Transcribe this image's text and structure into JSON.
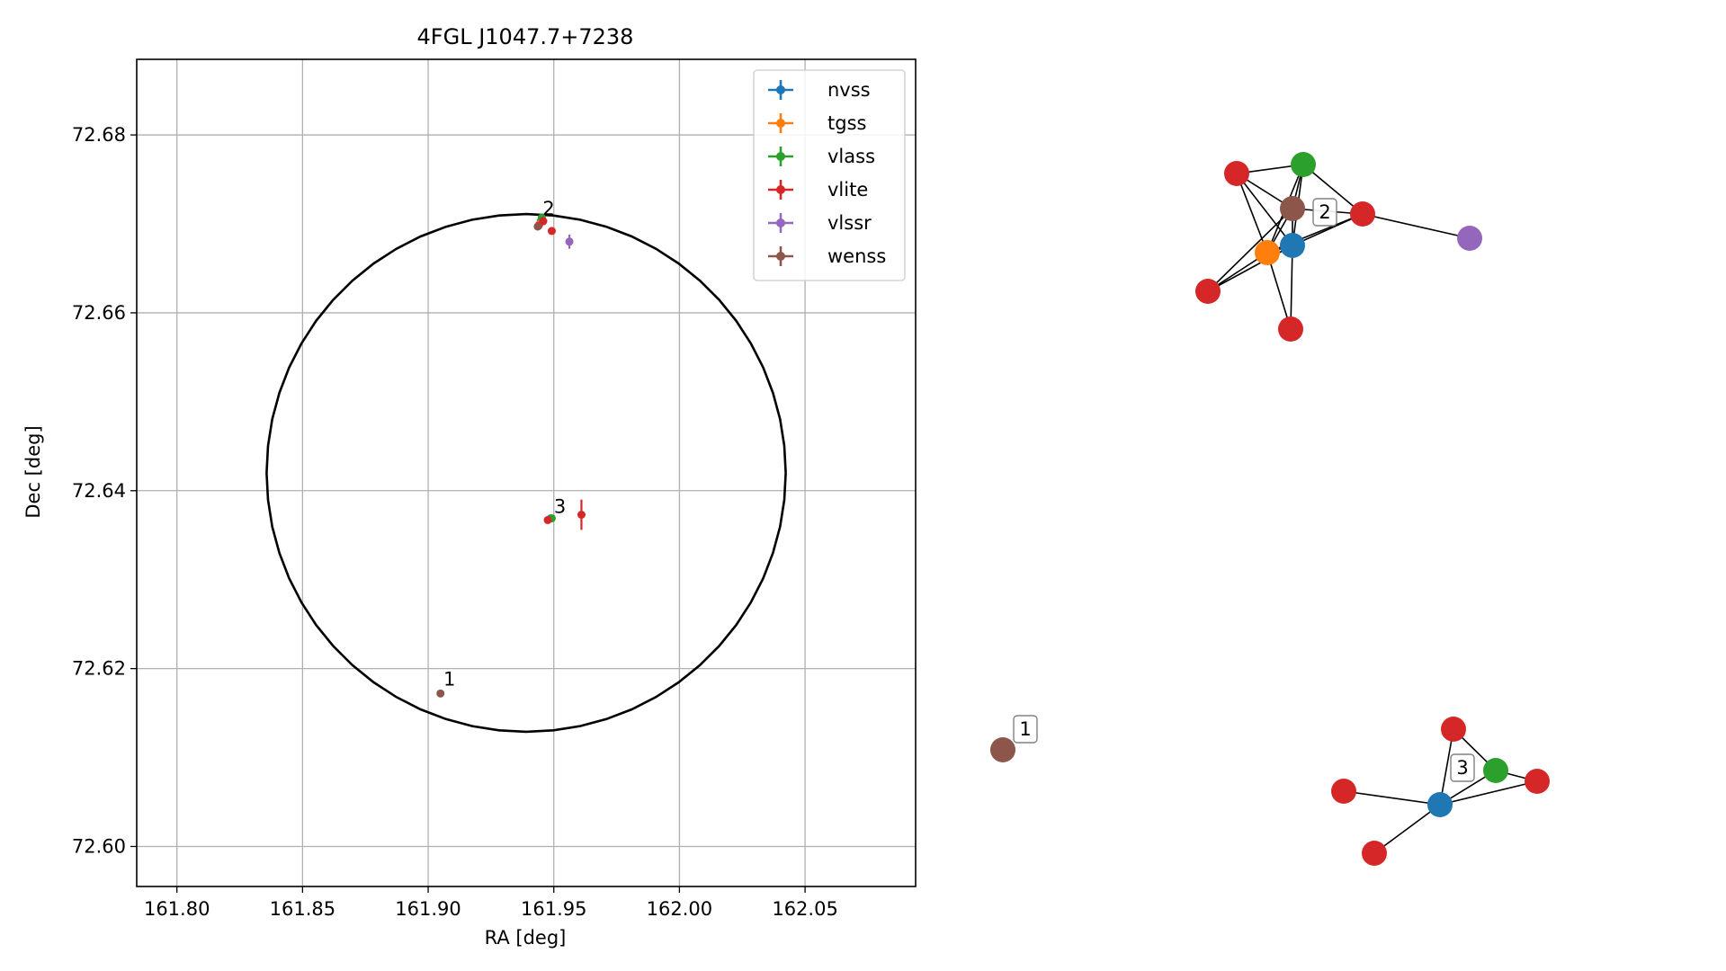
{
  "chart_data": [
    {
      "type": "scatter",
      "title": "4FGL J1047.7+7238",
      "xlabel": "RA [deg]",
      "ylabel": "Dec [deg]",
      "xlim": [
        161.784,
        162.094
      ],
      "ylim": [
        72.5955,
        72.6885
      ],
      "xticks": [
        161.8,
        161.85,
        161.9,
        161.95,
        162.0,
        162.05
      ],
      "xtick_labels": [
        "161.80",
        "161.85",
        "161.90",
        "161.95",
        "162.00",
        "162.05"
      ],
      "yticks": [
        72.6,
        72.62,
        72.64,
        72.66,
        72.68
      ],
      "ytick_labels": [
        "72.60",
        "72.62",
        "72.64",
        "72.66",
        "72.68"
      ],
      "grid": true,
      "legend_position": "top-right",
      "circle": {
        "center_ra": 161.939,
        "center_dec": 72.642,
        "radius_dec": 0.0291,
        "radius_ra": 0.1033
      },
      "series": [
        {
          "name": "nvss",
          "color": "#1f77b4",
          "points": [
            {
              "ra": 161.9448,
              "dec": 72.6703,
              "ra_err": 0.0002,
              "dec_err": 0.0002
            },
            {
              "ra": 161.9488,
              "dec": 72.6369,
              "ra_err": 0.0003,
              "dec_err": 0.0002
            }
          ]
        },
        {
          "name": "tgss",
          "color": "#ff7f0e",
          "points": [
            {
              "ra": 161.9443,
              "dec": 72.67,
              "ra_err": 0.0006,
              "dec_err": 0.0003
            }
          ]
        },
        {
          "name": "vlass",
          "color": "#2ca02c",
          "points": [
            {
              "ra": 161.9452,
              "dec": 72.6707,
              "ra_err": 0.0001,
              "dec_err": 0.0001
            },
            {
              "ra": 161.9492,
              "dec": 72.6369,
              "ra_err": 0.0001,
              "dec_err": 0.0001
            }
          ]
        },
        {
          "name": "vlite",
          "color": "#d62728",
          "points": [
            {
              "ra": 161.944,
              "dec": 72.6698,
              "ra_err": 0.0006,
              "dec_err": 0.0004
            },
            {
              "ra": 161.9458,
              "dec": 72.6703,
              "ra_err": 0.0005,
              "dec_err": 0.0003
            },
            {
              "ra": 161.9492,
              "dec": 72.6692,
              "ra_err": 0.0005,
              "dec_err": 0.0003
            },
            {
              "ra": 161.9476,
              "dec": 72.6367,
              "ra_err": 0.0004,
              "dec_err": 0.0003
            },
            {
              "ra": 161.961,
              "dec": 72.6373,
              "ra_err": 0.0005,
              "dec_err": 0.0017
            }
          ]
        },
        {
          "name": "vlssr",
          "color": "#9467bd",
          "points": [
            {
              "ra": 161.9562,
              "dec": 72.668,
              "ra_err": 0.0014,
              "dec_err": 0.0008
            }
          ]
        },
        {
          "name": "wenss",
          "color": "#8c564b",
          "points": [
            {
              "ra": 161.9436,
              "dec": 72.6697,
              "ra_err": 0.0006,
              "dec_err": 0.0004
            },
            {
              "ra": 161.9049,
              "dec": 72.6172,
              "ra_err": 0.0008,
              "dec_err": 0.0004
            }
          ]
        }
      ],
      "annotations": [
        {
          "text": "2",
          "ra": 161.9445,
          "dec": 72.6708
        },
        {
          "text": "3",
          "ra": 161.949,
          "dec": 72.6373
        },
        {
          "text": "1",
          "ra": 161.905,
          "dec": 72.6179
        }
      ]
    },
    {
      "type": "network",
      "node_colors": {
        "nvss": "#1f77b4",
        "tgss": "#ff7f0e",
        "vlass": "#2ca02c",
        "vlite": "#d62728",
        "vlssr": "#9467bd",
        "wenss": "#8c564b"
      },
      "nodes": [
        {
          "id": "a",
          "survey": "vlite",
          "pos": [
            0.6025,
            0.1645
          ]
        },
        {
          "id": "b",
          "survey": "vlass",
          "pos": [
            0.683,
            0.1365
          ]
        },
        {
          "id": "c",
          "survey": "wenss",
          "pos": [
            0.6635,
            0.2195
          ]
        },
        {
          "id": "d",
          "survey": "vlite",
          "pos": [
            0.793,
            0.2275
          ]
        },
        {
          "id": "e",
          "survey": "vlssr",
          "pos": [
            0.97,
            0.2785
          ]
        },
        {
          "id": "f",
          "survey": "nvss",
          "pos": [
            0.663,
            0.3055
          ]
        },
        {
          "id": "g",
          "survey": "tgss",
          "pos": [
            0.611,
            0.323
          ]
        },
        {
          "id": "h",
          "survey": "vlite",
          "pos": [
            0.57,
            0.404
          ]
        },
        {
          "id": "i",
          "survey": "vlite",
          "pos": [
            0.6605,
            0.49
          ]
        },
        {
          "id": "j",
          "survey": "wenss",
          "pos": [
            0.332,
            0.9445
          ]
        },
        {
          "id": "k",
          "survey": "vlite",
          "pos": [
            0.863,
            0.896
          ]
        },
        {
          "id": "l",
          "survey": "vlass",
          "pos": [
            0.93,
            0.9405
          ]
        },
        {
          "id": "m",
          "survey": "vlite",
          "pos": [
            0.75,
            1.0
          ]
        },
        {
          "id": "n",
          "survey": "vlite",
          "pos": [
            1.0,
            0.987
          ]
        },
        {
          "id": "o",
          "survey": "nvss",
          "pos": [
            0.844,
            1.0
          ]
        },
        {
          "id": "p",
          "survey": "vlite",
          "pos": [
            0.79,
            1.0
          ]
        }
      ],
      "edges": [
        [
          "a",
          "b"
        ],
        [
          "a",
          "c"
        ],
        [
          "a",
          "f"
        ],
        [
          "a",
          "g"
        ],
        [
          "b",
          "c"
        ],
        [
          "b",
          "d"
        ],
        [
          "b",
          "f"
        ],
        [
          "b",
          "g"
        ],
        [
          "c",
          "d"
        ],
        [
          "c",
          "f"
        ],
        [
          "c",
          "g"
        ],
        [
          "c",
          "h"
        ],
        [
          "d",
          "e"
        ],
        [
          "d",
          "f"
        ],
        [
          "d",
          "g"
        ],
        [
          "f",
          "g"
        ],
        [
          "f",
          "h"
        ],
        [
          "f",
          "i"
        ],
        [
          "g",
          "h"
        ],
        [
          "g",
          "i"
        ],
        [
          "k",
          "l"
        ],
        [
          "k",
          "o"
        ],
        [
          "l",
          "o"
        ],
        [
          "l",
          "n"
        ],
        [
          "o",
          "n"
        ],
        [
          "o",
          "m"
        ],
        [
          "o",
          "p"
        ]
      ],
      "labels": [
        {
          "text": "2",
          "node": "c"
        },
        {
          "text": "3",
          "node": "k"
        },
        {
          "text": "1",
          "node": "j"
        }
      ]
    }
  ]
}
